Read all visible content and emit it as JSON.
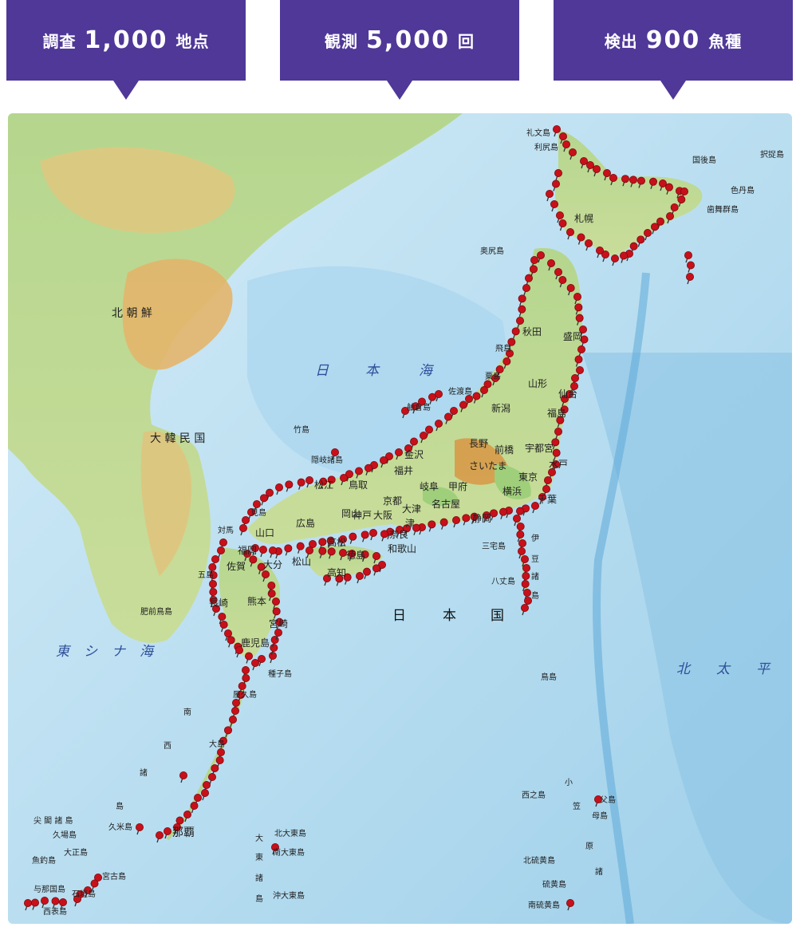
{
  "stats": [
    {
      "prefix": "調査",
      "number": "1,000",
      "suffix": "地点"
    },
    {
      "prefix": "観測",
      "number": "5,000",
      "suffix": "回"
    },
    {
      "prefix": "検出",
      "number": "900",
      "suffix": "魚種"
    }
  ],
  "map": {
    "colors": {
      "sea_deep": "#b7dcef",
      "sea_shallow": "#d9eef8",
      "land_low": "#a9d28a",
      "land_mid": "#e9c77a",
      "land_high": "#c88a3e",
      "pin": "#c8101a"
    },
    "labels": {
      "north_korea": "北 朝 鮮",
      "south_korea": "大 韓 民 国",
      "sea_of_japan": [
        "日",
        "本",
        "海"
      ],
      "east_china_sea": [
        "東",
        "シ",
        "ナ",
        "海"
      ],
      "pacific": [
        "北",
        "太",
        "平"
      ],
      "japan_country": [
        "日",
        "本",
        "国"
      ],
      "rebun": "礼文島",
      "rishiri": "利尻島",
      "kunashiri": "国後島",
      "etorofu": "択捉島",
      "shikotan": "色丹島",
      "habomai": "歯舞群島",
      "okushiri": "奥尻島",
      "tobishima": "飛島",
      "awashima": "粟島",
      "sado": "佐渡島",
      "hegura": "舳倉島",
      "takeshima": "竹島",
      "oki": "隠岐諸島",
      "mishima": "見島",
      "tsushima": "対馬",
      "goto": "五島",
      "hizen_torishima": "肥前鳥島",
      "tanegashima": "種子島",
      "yakushima": "屋久島",
      "amami": "大島",
      "nansei": [
        "南",
        "西",
        "諸",
        "島"
      ],
      "senkaku": "尖 閣 諸 島",
      "kuba": "久場島",
      "taisho": "大正島",
      "uotsuri": "魚釣島",
      "yonaguni": "与那国島",
      "ishigaki": "石垣島",
      "iriomote": "西表島",
      "miyako": "宮古島",
      "kume": "久米島",
      "naha": "那覇",
      "daito": [
        "大",
        "東",
        "諸",
        "島"
      ],
      "kita_daito": "北大東島",
      "minami_daito": "南大東島",
      "oki_daito": "沖大東島",
      "izu": [
        "伊",
        "豆",
        "諸",
        "島"
      ],
      "miyake": "三宅島",
      "hachijo": "八丈島",
      "torishima": "鳥島",
      "ogasawara": [
        "小",
        "笠",
        "原",
        "諸"
      ],
      "nishinoshima": "西之島",
      "chichijima": "父島",
      "hahajima": "母島",
      "kita_io": "北硫黄島",
      "io": "硫黄島",
      "minami_io": "南硫黄島",
      "sapporo": "札幌",
      "akita": "秋田",
      "morioka": "盛岡",
      "yamagata": "山形",
      "sendai": "仙台",
      "fukushima": "福島",
      "niigata": "新潟",
      "kanazawa": "金沢",
      "nagano": "長野",
      "maebashi": "前橋",
      "utsunomiya": "宇都宮",
      "mito": "水戸",
      "saitama": "さいたま",
      "tokyo": "東京",
      "chiba": "千葉",
      "kofu": "甲府",
      "gifu": "岐阜",
      "nagoya": "名古屋",
      "fukui": "福井",
      "kyoto": "京都",
      "otsu": "大津",
      "osaka": "大阪",
      "nara": "奈良",
      "wakayama": "和歌山",
      "shizuoka": "静岡",
      "yokohama": "横浜",
      "matsue": "松江",
      "tottori": "鳥取",
      "okayama": "岡山",
      "hiroshima": "広島",
      "yamaguchi": "山口",
      "fukuoka": "福岡",
      "saga": "佐賀",
      "nagasaki": "長崎",
      "kumamoto": "熊本",
      "oita": "大分",
      "miyazaki": "宮崎",
      "kagoshima": "鹿児島",
      "matsuyama": "松山",
      "kochi": "高知",
      "tokushima": "徳島",
      "takamatsu": "高松",
      "kobe": "神戸",
      "tsu": "津"
    }
  }
}
